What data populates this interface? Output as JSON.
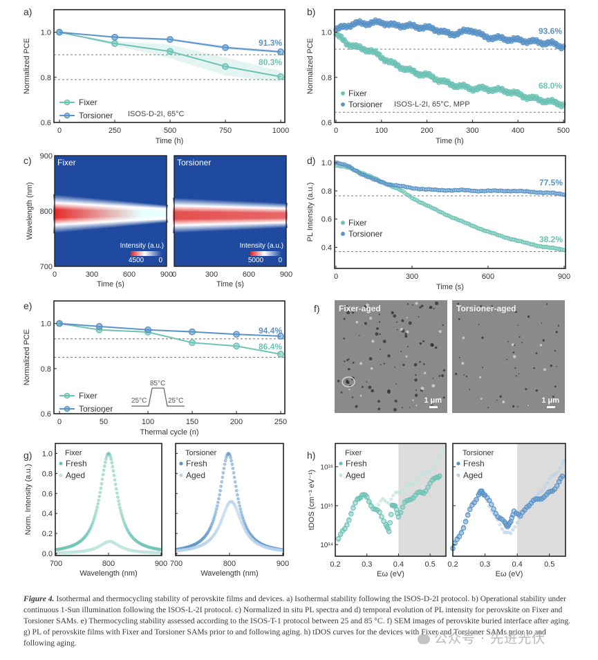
{
  "colors": {
    "fixer": "#6cc2b4",
    "torsioner": "#5a93c7",
    "fixer_light": "#bfe4dd",
    "torsioner_light": "#b9d3ea",
    "dash": "#888888",
    "axis": "#222222",
    "shade": "#dcdcdc"
  },
  "chart_data": [
    {
      "id": "a",
      "panel_label": "a)",
      "type": "line",
      "xlabel": "Time (h)",
      "ylabel": "Normalized PCE",
      "xlim": [
        0,
        1000
      ],
      "ylim": [
        0.6,
        1.1
      ],
      "xticks": [
        0,
        250,
        500,
        750,
        1000
      ],
      "yticks": [
        0.6,
        0.8,
        1.0
      ],
      "ytick_labels": [
        "0.6",
        "0.8",
        "1.0"
      ],
      "series": [
        {
          "name": "Fixer",
          "x": [
            0,
            250,
            500,
            750,
            1000
          ],
          "y": [
            1.0,
            0.95,
            0.915,
            0.848,
            0.803
          ],
          "band": [
            0.0,
            0.01,
            0.03,
            0.04,
            0.025
          ]
        },
        {
          "name": "Torsioner",
          "x": [
            0,
            250,
            500,
            750,
            1000
          ],
          "y": [
            1.0,
            0.978,
            0.968,
            0.932,
            0.913
          ],
          "band": [
            0.0,
            0.005,
            0.005,
            0.008,
            0.006
          ]
        }
      ],
      "hlines": [
        0.9,
        0.79
      ],
      "annotations": [
        {
          "text": "91.3%",
          "series": "Torsioner"
        },
        {
          "text": "80.3%",
          "series": "Fixer"
        }
      ],
      "note": "ISOS-D-2I, 65°C",
      "legend": [
        "Fixer",
        "Torsioner"
      ]
    },
    {
      "id": "b",
      "panel_label": "b)",
      "type": "scatter",
      "xlabel": "Time (h)",
      "ylabel": "Normalized PCE",
      "xlim": [
        0,
        500
      ],
      "ylim": [
        0.6,
        1.1
      ],
      "xticks": [
        0,
        100,
        200,
        300,
        400,
        500
      ],
      "yticks": [
        0.6,
        0.8,
        1.0
      ],
      "ytick_labels": [
        "0.6",
        "0.8",
        "1.0"
      ],
      "series": [
        {
          "name": "Fixer",
          "x": [
            0,
            25,
            50,
            75,
            100,
            125,
            150,
            175,
            200,
            225,
            250,
            275,
            300,
            325,
            350,
            375,
            400,
            425,
            450,
            475,
            500
          ],
          "y": [
            0.99,
            0.95,
            0.93,
            0.92,
            0.89,
            0.86,
            0.84,
            0.82,
            0.81,
            0.79,
            0.77,
            0.76,
            0.75,
            0.75,
            0.745,
            0.74,
            0.725,
            0.71,
            0.7,
            0.69,
            0.68
          ]
        },
        {
          "name": "Torsioner",
          "x": [
            0,
            25,
            50,
            75,
            100,
            125,
            150,
            175,
            200,
            225,
            250,
            275,
            300,
            325,
            350,
            375,
            400,
            425,
            450,
            475,
            500
          ],
          "y": [
            1.01,
            1.03,
            1.04,
            1.04,
            1.045,
            1.03,
            1.03,
            1.025,
            1.02,
            1.01,
            0.99,
            1.0,
            1.01,
            0.98,
            0.975,
            0.97,
            0.965,
            0.96,
            0.955,
            0.95,
            0.936
          ]
        }
      ],
      "hlines": [
        0.925,
        0.645
      ],
      "annotations": [
        {
          "text": "93.6%",
          "series": "Torsioner"
        },
        {
          "text": "68.0%",
          "series": "Fixer"
        }
      ],
      "note": "ISOS-L-2I, 65°C, MPP",
      "legend": [
        "Fixer",
        "Torsioner"
      ]
    },
    {
      "id": "c",
      "panel_label": "c)",
      "type": "heatmap",
      "ylabel": "Wavelength (nm)",
      "xlabel": "Time (s)",
      "xlim": [
        0,
        900
      ],
      "ylim": [
        700,
        900
      ],
      "xticks": [
        0,
        300,
        600,
        900
      ],
      "yticks": [
        700,
        800,
        900
      ],
      "subplots": [
        {
          "title": "Fixer",
          "colorbar_title": "Intensity (a.u.)",
          "colorbar_max": "4500",
          "colorbar_min": "0",
          "peak_nm": 795,
          "decay_time_s": 700
        },
        {
          "title": "Torsioner",
          "colorbar_title": "Intensity (a.u.)",
          "colorbar_max": "5000",
          "colorbar_min": "0",
          "peak_nm": 792,
          "decay_time_s": null
        }
      ]
    },
    {
      "id": "d",
      "panel_label": "d)",
      "type": "scatter",
      "xlabel": "Time (s)",
      "ylabel": "PL Intensity (a.u.)",
      "xlim": [
        0,
        900
      ],
      "ylim": [
        0.25,
        1.05
      ],
      "xticks": [
        0,
        300,
        600,
        900
      ],
      "yticks": [
        0.4,
        0.6,
        0.8,
        1.0
      ],
      "ytick_labels": [
        "0.4",
        "0.6",
        "0.8",
        "1.0"
      ],
      "series": [
        {
          "name": "Fixer",
          "x": [
            0,
            50,
            100,
            150,
            200,
            250,
            300,
            350,
            400,
            450,
            500,
            550,
            600,
            650,
            700,
            750,
            800,
            850,
            900
          ],
          "y": [
            0.98,
            0.965,
            0.93,
            0.89,
            0.85,
            0.81,
            0.75,
            0.705,
            0.66,
            0.62,
            0.58,
            0.545,
            0.51,
            0.48,
            0.455,
            0.43,
            0.41,
            0.395,
            0.382
          ]
        },
        {
          "name": "Torsioner",
          "x": [
            0,
            50,
            100,
            150,
            200,
            250,
            300,
            350,
            400,
            450,
            500,
            550,
            600,
            650,
            700,
            750,
            800,
            850,
            900
          ],
          "y": [
            1.0,
            0.975,
            0.92,
            0.88,
            0.85,
            0.835,
            0.82,
            0.812,
            0.805,
            0.805,
            0.805,
            0.8,
            0.8,
            0.8,
            0.8,
            0.795,
            0.79,
            0.785,
            0.775
          ]
        }
      ],
      "hlines": [
        0.765,
        0.37
      ],
      "annotations": [
        {
          "text": "77.5%",
          "series": "Torsioner"
        },
        {
          "text": "38.2%",
          "series": "Fixer"
        }
      ],
      "legend": [
        "Fixer",
        "Torsioner"
      ]
    },
    {
      "id": "e",
      "panel_label": "e)",
      "type": "line",
      "xlabel": "Thermal cycle (n)",
      "ylabel": "Normalized PCE",
      "xlim": [
        0,
        250
      ],
      "ylim": [
        0.6,
        1.1
      ],
      "xticks": [
        0,
        50,
        100,
        150,
        200,
        250
      ],
      "yticks": [
        0.6,
        0.8,
        1.0
      ],
      "ytick_labels": [
        "0.6",
        "0.8",
        "1.0"
      ],
      "series": [
        {
          "name": "Fixer",
          "x": [
            0,
            45,
            100,
            150,
            200,
            250
          ],
          "y": [
            1.0,
            0.972,
            0.962,
            0.915,
            0.9,
            0.864
          ]
        },
        {
          "name": "Torsioner",
          "x": [
            0,
            45,
            100,
            150,
            200,
            250
          ],
          "y": [
            1.0,
            0.987,
            0.972,
            0.963,
            0.952,
            0.944
          ]
        }
      ],
      "hlines": [
        0.932,
        0.85
      ],
      "annotations": [
        {
          "text": "94.4%",
          "series": "Torsioner"
        },
        {
          "text": "86.4%",
          "series": "Fixer"
        }
      ],
      "inset": {
        "low": "25°C",
        "high": "85°C",
        "low2": "25°C"
      },
      "legend": [
        "Fixer",
        "Torsioner"
      ]
    },
    {
      "id": "g",
      "panel_label": "g)",
      "type": "line",
      "xlabel": "Wavelength (nm)",
      "ylabel": "Norm. Intensity (a.u.)",
      "xlim": [
        700,
        900
      ],
      "ylim": [
        0,
        1.1
      ],
      "xticks": [
        700,
        800,
        900
      ],
      "yticks": [
        0.0,
        0.2,
        0.4,
        0.6,
        0.8,
        1.0
      ],
      "ytick_labels": [
        "0.0",
        "0.2",
        "0.4",
        "0.6",
        "0.8",
        "1.0"
      ],
      "subplots": [
        {
          "title": "Fixer",
          "series": [
            {
              "name": "Fresh",
              "peak_nm": 800,
              "peak": 1.0
            },
            {
              "name": "Aged",
              "peak_nm": 802,
              "peak": 0.12
            }
          ]
        },
        {
          "title": "Torsioner",
          "series": [
            {
              "name": "Fresh",
              "peak_nm": 798,
              "peak": 1.0
            },
            {
              "name": "Aged",
              "peak_nm": 803,
              "peak": 0.52
            }
          ]
        }
      ]
    },
    {
      "id": "h",
      "panel_label": "h)",
      "type": "scatter",
      "xlabel": "Eω (eV)",
      "ylabel": "tDOS (cm⁻³ eV⁻¹)",
      "xlim": [
        0.2,
        0.55
      ],
      "ylim_log10": [
        13.7,
        16.6
      ],
      "xticks": [
        0.2,
        0.3,
        0.4,
        0.5
      ],
      "xtick_labels": [
        "0.2",
        "0.3",
        "0.4",
        "0.5"
      ],
      "yticks_log10": [
        14,
        15,
        16
      ],
      "ytick_labels": [
        "10¹⁴",
        "10¹⁵",
        "10¹⁶"
      ],
      "shaded_region": [
        0.4,
        0.55
      ],
      "subplots": [
        {
          "title": "Fixer",
          "series": [
            {
              "name": "Fresh",
              "x": [
                0.21,
                0.23,
                0.25,
                0.27,
                0.285,
                0.3,
                0.32,
                0.34,
                0.36,
                0.37,
                0.38,
                0.39,
                0.4,
                0.42,
                0.44,
                0.46,
                0.48,
                0.5,
                0.52,
                0.535
              ],
              "log10y": [
                14.15,
                14.4,
                14.8,
                15.15,
                15.3,
                15.2,
                14.95,
                14.8,
                14.55,
                14.3,
                15.05,
                14.95,
                14.75,
                15.05,
                15.2,
                15.3,
                15.35,
                15.55,
                15.75,
                15.8
              ]
            },
            {
              "name": "Aged",
              "x": [
                0.21,
                0.23,
                0.25,
                0.27,
                0.29,
                0.31,
                0.33,
                0.35,
                0.37,
                0.39,
                0.41,
                0.43,
                0.45,
                0.47,
                0.49,
                0.51,
                0.53,
                0.545
              ],
              "log10y": [
                14.1,
                14.45,
                14.85,
                15.2,
                15.25,
                15.05,
                14.95,
                15.15,
                15.1,
                15.3,
                15.4,
                15.5,
                15.6,
                15.75,
                15.9,
                15.95,
                16.3,
                16.5
              ]
            }
          ]
        },
        {
          "title": "Torsioner",
          "series": [
            {
              "name": "Fresh",
              "x": [
                0.2,
                0.22,
                0.24,
                0.26,
                0.28,
                0.29,
                0.3,
                0.32,
                0.34,
                0.36,
                0.37,
                0.38,
                0.39,
                0.41,
                0.43,
                0.45,
                0.47,
                0.49,
                0.51,
                0.53,
                0.545
              ],
              "log10y": [
                13.9,
                14.2,
                14.6,
                15.0,
                15.3,
                15.35,
                15.3,
                15.0,
                14.75,
                14.55,
                14.5,
                14.55,
                14.9,
                14.7,
                15.0,
                15.1,
                15.2,
                15.25,
                15.4,
                15.6,
                15.8
              ]
            },
            {
              "name": "Aged",
              "x": [
                0.2,
                0.22,
                0.24,
                0.26,
                0.28,
                0.3,
                0.32,
                0.34,
                0.36,
                0.38,
                0.4,
                0.42,
                0.44,
                0.46,
                0.48,
                0.5,
                0.52,
                0.54,
                0.55
              ],
              "log10y": [
                13.95,
                14.25,
                14.65,
                15.05,
                15.3,
                15.25,
                14.9,
                14.6,
                14.35,
                14.25,
                14.6,
                14.85,
                15.0,
                15.2,
                15.45,
                15.65,
                15.85,
                16.05,
                16.2
              ]
            }
          ]
        }
      ]
    }
  ],
  "sem_panel": {
    "panel_label": "f)",
    "images": [
      {
        "title": "Fixer-aged",
        "scale": "1 μm"
      },
      {
        "title": "Torsioner-aged",
        "scale": "1 μm"
      }
    ]
  },
  "caption": {
    "lead": "Figure 4.",
    "text": " Isothermal and thermocycling stability of perovskite films and devices. a) Isothermal stability following the ISOS-D-2I protocol. b) Operational stability under continuous 1-Sun illumination following the ISOS-L-2I protocol. c) Normalized in situ PL spectra and d) temporal evolution of PL intensity for perovskite on Fixer and Torsioner SAMs. e) Thermocycling stability assessed according to the ISOS-T-1 protocol between 25 and 85 °C. f) SEM images of perovskite buried interface after aging. g) PL of perovskite films with Fixer and Torsioner SAMs prior to and following aging. h) tDOS curves for the devices with Fixer and Torsioner SAMs prior to and following aging."
  },
  "watermark": "公众号 · 先进光伏"
}
